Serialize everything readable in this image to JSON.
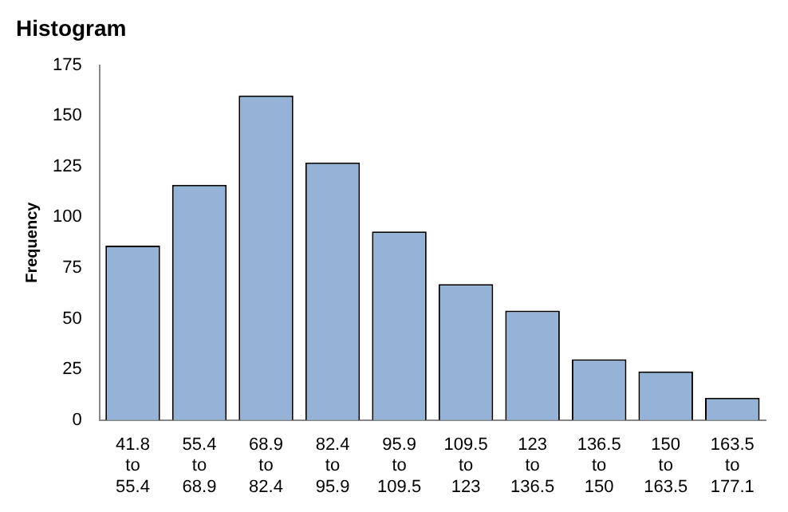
{
  "chart_data": {
    "type": "bar",
    "title": "Histogram",
    "ylabel": "Frequency",
    "categories": [
      "41.8\nto\n55.4",
      "55.4\nto\n68.9",
      "68.9\nto\n82.4",
      "82.4\nto\n95.9",
      "95.9\nto\n109.5",
      "109.5\nto\n123",
      "123\nto\n136.5",
      "136.5\nto\n150",
      "150\nto\n163.5",
      "163.5\nto\n177.1"
    ],
    "values": [
      86,
      116,
      160,
      127,
      93,
      67,
      54,
      30,
      24,
      11
    ],
    "color": "#95b3d7",
    "ylim": [
      0,
      175
    ],
    "yticks": [
      0,
      25,
      50,
      75,
      100,
      125,
      150,
      175
    ],
    "grid": false,
    "legend": false
  }
}
